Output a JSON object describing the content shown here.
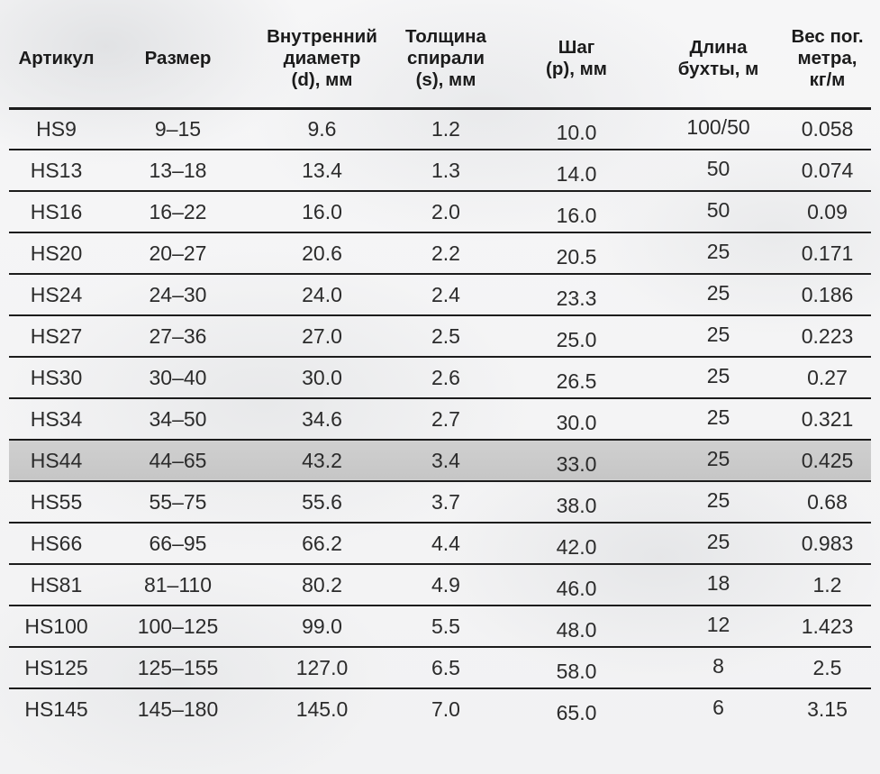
{
  "chart_data": {
    "type": "table",
    "columns": [
      "Артикул",
      "Размер",
      "Внутренний\nдиаметр\n(d), мм",
      "Толщина\nспирали\n(s), мм",
      "Шаг\n(p), мм",
      "Длина\nбухты, м",
      "Вес пог.\nметра,\nкг/м"
    ],
    "rows": [
      {
        "article": "HS9",
        "size": "9–15",
        "inner_diameter": "9.6",
        "spiral_thickness": "1.2",
        "pitch": "10.0",
        "coil_length": "100/50",
        "weight": "0.058",
        "highlighted": false
      },
      {
        "article": "HS13",
        "size": "13–18",
        "inner_diameter": "13.4",
        "spiral_thickness": "1.3",
        "pitch": "14.0",
        "coil_length": "50",
        "weight": "0.074",
        "highlighted": false
      },
      {
        "article": "HS16",
        "size": "16–22",
        "inner_diameter": "16.0",
        "spiral_thickness": "2.0",
        "pitch": "16.0",
        "coil_length": "50",
        "weight": "0.09",
        "highlighted": false
      },
      {
        "article": "HS20",
        "size": "20–27",
        "inner_diameter": "20.6",
        "spiral_thickness": "2.2",
        "pitch": "20.5",
        "coil_length": "25",
        "weight": "0.171",
        "highlighted": false
      },
      {
        "article": "HS24",
        "size": "24–30",
        "inner_diameter": "24.0",
        "spiral_thickness": "2.4",
        "pitch": "23.3",
        "coil_length": "25",
        "weight": "0.186",
        "highlighted": false
      },
      {
        "article": "HS27",
        "size": "27–36",
        "inner_diameter": "27.0",
        "spiral_thickness": "2.5",
        "pitch": "25.0",
        "coil_length": "25",
        "weight": "0.223",
        "highlighted": false
      },
      {
        "article": "HS30",
        "size": "30–40",
        "inner_diameter": "30.0",
        "spiral_thickness": "2.6",
        "pitch": "26.5",
        "coil_length": "25",
        "weight": "0.27",
        "highlighted": false
      },
      {
        "article": "HS34",
        "size": "34–50",
        "inner_diameter": "34.6",
        "spiral_thickness": "2.7",
        "pitch": "30.0",
        "coil_length": "25",
        "weight": "0.321",
        "highlighted": false
      },
      {
        "article": "HS44",
        "size": "44–65",
        "inner_diameter": "43.2",
        "spiral_thickness": "3.4",
        "pitch": "33.0",
        "coil_length": "25",
        "weight": "0.425",
        "highlighted": true
      },
      {
        "article": "HS55",
        "size": "55–75",
        "inner_diameter": "55.6",
        "spiral_thickness": "3.7",
        "pitch": "38.0",
        "coil_length": "25",
        "weight": "0.68",
        "highlighted": false
      },
      {
        "article": "HS66",
        "size": "66–95",
        "inner_diameter": "66.2",
        "spiral_thickness": "4.4",
        "pitch": "42.0",
        "coil_length": "25",
        "weight": "0.983",
        "highlighted": false
      },
      {
        "article": "HS81",
        "size": "81–110",
        "inner_diameter": "80.2",
        "spiral_thickness": "4.9",
        "pitch": "46.0",
        "coil_length": "18",
        "weight": "1.2",
        "highlighted": false
      },
      {
        "article": "HS100",
        "size": "100–125",
        "inner_diameter": "99.0",
        "spiral_thickness": "5.5",
        "pitch": "48.0",
        "coil_length": "12",
        "weight": "1.423",
        "highlighted": false
      },
      {
        "article": "HS125",
        "size": "125–155",
        "inner_diameter": "127.0",
        "spiral_thickness": "6.5",
        "pitch": "58.0",
        "coil_length": "8",
        "weight": "2.5",
        "highlighted": false
      },
      {
        "article": "HS145",
        "size": "145–180",
        "inner_diameter": "145.0",
        "spiral_thickness": "7.0",
        "pitch": "65.0",
        "coil_length": "6",
        "weight": "3.15",
        "highlighted": false
      }
    ],
    "highlighted_article": "HS44"
  },
  "colors": {
    "line": "#1c1c1c",
    "text": "#2b2b2b",
    "highlight_row_bg": "#c9c9c9",
    "background": "#f3f3f4"
  }
}
